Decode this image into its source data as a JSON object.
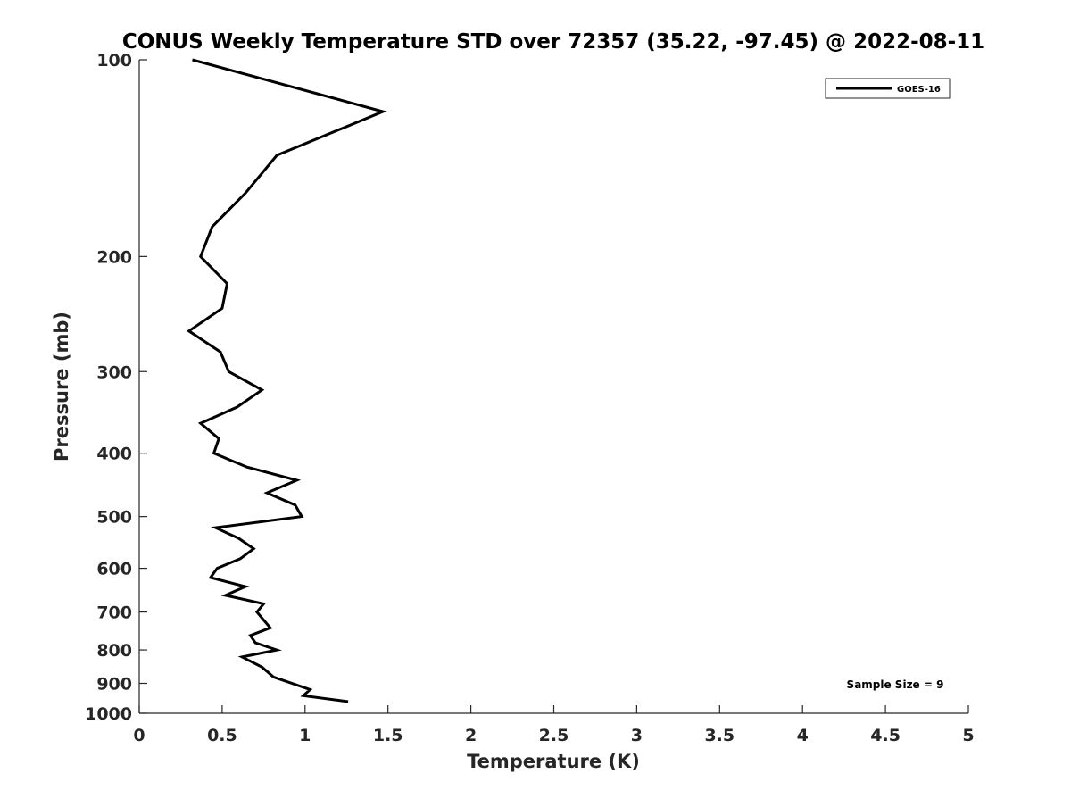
{
  "chart_data": {
    "type": "line",
    "title": "CONUS Weekly Temperature STD over 72357 (35.22, -97.45) @ 2022-08-11",
    "xlabel": "Temperature (K)",
    "ylabel": "Pressure (mb)",
    "xlim": [
      0,
      5
    ],
    "ylim": [
      100,
      1000
    ],
    "yscale": "log",
    "y_reversed": true,
    "grid": false,
    "x_ticks": [
      "0",
      "0.5",
      "1",
      "1.5",
      "2",
      "2.5",
      "3",
      "3.5",
      "4",
      "4.5",
      "5"
    ],
    "x_tick_values": [
      0,
      0.5,
      1,
      1.5,
      2,
      2.5,
      3,
      3.5,
      4,
      4.5,
      5
    ],
    "y_ticks": [
      "100",
      "200",
      "300",
      "400",
      "500",
      "600",
      "700",
      "800",
      "900",
      "1000"
    ],
    "y_tick_values": [
      100,
      200,
      300,
      400,
      500,
      600,
      700,
      800,
      900,
      1000
    ],
    "legend_placement": "top-right",
    "series": [
      {
        "name": "GOES-16",
        "color": "#000000",
        "x": [
          0.32,
          1.47,
          0.83,
          0.64,
          0.44,
          0.37,
          0.53,
          0.5,
          0.3,
          0.49,
          0.54,
          0.74,
          0.59,
          0.37,
          0.48,
          0.45,
          0.65,
          0.95,
          0.77,
          0.94,
          0.98,
          0.46,
          0.6,
          0.69,
          0.61,
          0.47,
          0.43,
          0.64,
          0.52,
          0.75,
          0.71,
          0.79,
          0.67,
          0.7,
          0.83,
          0.62,
          0.74,
          0.81,
          1.03,
          0.99,
          1.26
        ],
        "y": [
          100,
          120,
          140,
          160,
          180,
          200,
          220,
          240,
          260,
          280,
          300,
          320,
          340,
          360,
          380,
          400,
          420,
          440,
          460,
          480,
          500,
          520,
          540,
          560,
          580,
          600,
          620,
          640,
          660,
          680,
          700,
          740,
          760,
          780,
          800,
          820,
          850,
          880,
          920,
          940,
          960
        ]
      }
    ],
    "annotations": [
      "Sample Size = 9"
    ]
  }
}
